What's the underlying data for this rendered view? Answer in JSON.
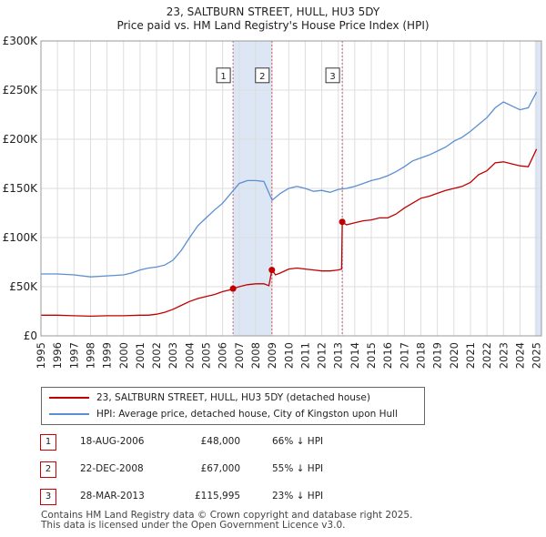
{
  "header": {
    "title": "23, SALTBURN STREET, HULL, HU3 5DY",
    "subtitle": "Price paid vs. HM Land Registry's House Price Index (HPI)"
  },
  "colors": {
    "property": "#c00000",
    "hpi": "#5b8fd0",
    "grid": "#dddddd",
    "shade": "#dce6f5",
    "marker_line": "#d06060"
  },
  "chart_data": {
    "type": "line",
    "title": "23, SALTBURN STREET, HULL, HU3 5DY",
    "subtitle": "Price paid vs. HM Land Registry's House Price Index (HPI)",
    "xlabel": "",
    "ylabel": "",
    "xlim": [
      1995,
      2025.3
    ],
    "ylim": [
      0,
      300000
    ],
    "y_ticks": [
      0,
      50000,
      100000,
      150000,
      200000,
      250000,
      300000
    ],
    "y_tick_labels": [
      "£0",
      "£50K",
      "£100K",
      "£150K",
      "£200K",
      "£250K",
      "£300K"
    ],
    "x_ticks": [
      1995,
      1996,
      1997,
      1998,
      1999,
      2000,
      2001,
      2002,
      2003,
      2004,
      2005,
      2006,
      2007,
      2008,
      2009,
      2010,
      2011,
      2012,
      2013,
      2014,
      2015,
      2016,
      2017,
      2018,
      2019,
      2020,
      2021,
      2022,
      2023,
      2024,
      2025
    ],
    "x_tick_labels": [
      "1995",
      "1996",
      "1997",
      "1998",
      "1999",
      "2000",
      "2001",
      "2002",
      "2003",
      "2004",
      "2005",
      "2006",
      "2007",
      "2008",
      "2009",
      "2010",
      "2011",
      "2012",
      "2013",
      "2014",
      "2015",
      "2016",
      "2017",
      "2018",
      "2019",
      "2020",
      "2021",
      "2022",
      "2023",
      "2024",
      "2025"
    ],
    "shaded_ranges": [
      [
        2006.63,
        2008.98
      ],
      [
        2013.24,
        2013.3
      ],
      [
        2024.9,
        2025.3
      ]
    ],
    "series": [
      {
        "name": "23, SALTBURN STREET, HULL, HU3 5DY (detached house)",
        "color": "#c00000",
        "points": [
          [
            1995.0,
            21000
          ],
          [
            1996.0,
            21000
          ],
          [
            1997.0,
            20500
          ],
          [
            1998.0,
            20000
          ],
          [
            1999.0,
            20500
          ],
          [
            2000.0,
            20500
          ],
          [
            2001.0,
            21000
          ],
          [
            2001.5,
            21000
          ],
          [
            2002.0,
            22000
          ],
          [
            2002.5,
            24000
          ],
          [
            2003.0,
            27000
          ],
          [
            2003.5,
            31000
          ],
          [
            2004.0,
            35000
          ],
          [
            2004.5,
            38000
          ],
          [
            2005.0,
            40000
          ],
          [
            2005.5,
            42000
          ],
          [
            2006.0,
            45000
          ],
          [
            2006.5,
            47000
          ],
          [
            2006.63,
            48000
          ],
          [
            2007.0,
            50000
          ],
          [
            2007.5,
            52000
          ],
          [
            2008.0,
            53000
          ],
          [
            2008.5,
            53000
          ],
          [
            2008.8,
            51000
          ],
          [
            2008.98,
            67000
          ],
          [
            2009.2,
            62000
          ],
          [
            2009.5,
            64000
          ],
          [
            2010.0,
            68000
          ],
          [
            2010.5,
            69000
          ],
          [
            2011.0,
            68000
          ],
          [
            2011.5,
            67000
          ],
          [
            2012.0,
            66000
          ],
          [
            2012.5,
            66000
          ],
          [
            2013.0,
            67000
          ],
          [
            2013.2,
            68000
          ],
          [
            2013.24,
            115995
          ],
          [
            2013.5,
            113000
          ],
          [
            2014.0,
            115000
          ],
          [
            2014.5,
            117000
          ],
          [
            2015.0,
            118000
          ],
          [
            2015.5,
            120000
          ],
          [
            2016.0,
            120000
          ],
          [
            2016.5,
            124000
          ],
          [
            2017.0,
            130000
          ],
          [
            2017.5,
            135000
          ],
          [
            2018.0,
            140000
          ],
          [
            2018.5,
            142000
          ],
          [
            2019.0,
            145000
          ],
          [
            2019.5,
            148000
          ],
          [
            2020.0,
            150000
          ],
          [
            2020.5,
            152000
          ],
          [
            2021.0,
            156000
          ],
          [
            2021.5,
            164000
          ],
          [
            2022.0,
            168000
          ],
          [
            2022.5,
            176000
          ],
          [
            2023.0,
            177000
          ],
          [
            2023.5,
            175000
          ],
          [
            2024.0,
            173000
          ],
          [
            2024.5,
            172000
          ],
          [
            2025.0,
            190000
          ]
        ]
      },
      {
        "name": "HPI: Average price, detached house, City of Kingston upon Hull",
        "color": "#5b8fd0",
        "points": [
          [
            1995.0,
            63000
          ],
          [
            1996.0,
            63000
          ],
          [
            1997.0,
            62000
          ],
          [
            1998.0,
            60000
          ],
          [
            1999.0,
            61000
          ],
          [
            2000.0,
            62000
          ],
          [
            2000.5,
            64000
          ],
          [
            2001.0,
            67000
          ],
          [
            2001.5,
            69000
          ],
          [
            2002.0,
            70000
          ],
          [
            2002.5,
            72000
          ],
          [
            2003.0,
            77000
          ],
          [
            2003.5,
            87000
          ],
          [
            2004.0,
            100000
          ],
          [
            2004.5,
            112000
          ],
          [
            2005.0,
            120000
          ],
          [
            2005.5,
            128000
          ],
          [
            2006.0,
            135000
          ],
          [
            2006.5,
            145000
          ],
          [
            2007.0,
            155000
          ],
          [
            2007.5,
            158000
          ],
          [
            2008.0,
            158000
          ],
          [
            2008.5,
            157000
          ],
          [
            2009.0,
            138000
          ],
          [
            2009.5,
            145000
          ],
          [
            2010.0,
            150000
          ],
          [
            2010.5,
            152000
          ],
          [
            2011.0,
            150000
          ],
          [
            2011.5,
            147000
          ],
          [
            2012.0,
            148000
          ],
          [
            2012.5,
            146000
          ],
          [
            2013.0,
            149000
          ],
          [
            2013.5,
            150000
          ],
          [
            2014.0,
            152000
          ],
          [
            2014.5,
            155000
          ],
          [
            2015.0,
            158000
          ],
          [
            2015.5,
            160000
          ],
          [
            2016.0,
            163000
          ],
          [
            2016.5,
            167000
          ],
          [
            2017.0,
            172000
          ],
          [
            2017.5,
            178000
          ],
          [
            2018.0,
            181000
          ],
          [
            2018.5,
            184000
          ],
          [
            2019.0,
            188000
          ],
          [
            2019.5,
            192000
          ],
          [
            2020.0,
            198000
          ],
          [
            2020.5,
            202000
          ],
          [
            2021.0,
            208000
          ],
          [
            2021.5,
            215000
          ],
          [
            2022.0,
            222000
          ],
          [
            2022.5,
            232000
          ],
          [
            2023.0,
            238000
          ],
          [
            2023.5,
            234000
          ],
          [
            2024.0,
            230000
          ],
          [
            2024.5,
            232000
          ],
          [
            2025.0,
            248000
          ]
        ]
      }
    ],
    "sales": [
      {
        "id": "1",
        "x": 2006.63,
        "price": 48000,
        "label_y": 265000
      },
      {
        "id": "2",
        "x": 2008.98,
        "price": 67000,
        "label_y": 265000
      },
      {
        "id": "3",
        "x": 2013.24,
        "price": 115995,
        "label_y": 265000
      }
    ]
  },
  "legend": {
    "property_label": "23, SALTBURN STREET, HULL, HU3 5DY (detached house)",
    "hpi_label": "HPI: Average price, detached house, City of Kingston upon Hull"
  },
  "sales_table": [
    {
      "num": "1",
      "date": "18-AUG-2006",
      "price": "£48,000",
      "delta": "66% ↓ HPI"
    },
    {
      "num": "2",
      "date": "22-DEC-2008",
      "price": "£67,000",
      "delta": "55% ↓ HPI"
    },
    {
      "num": "3",
      "date": "28-MAR-2013",
      "price": "£115,995",
      "delta": "23% ↓ HPI"
    }
  ],
  "footer": {
    "line1": "Contains HM Land Registry data © Crown copyright and database right 2025.",
    "line2": "This data is licensed under the Open Government Licence v3.0."
  }
}
